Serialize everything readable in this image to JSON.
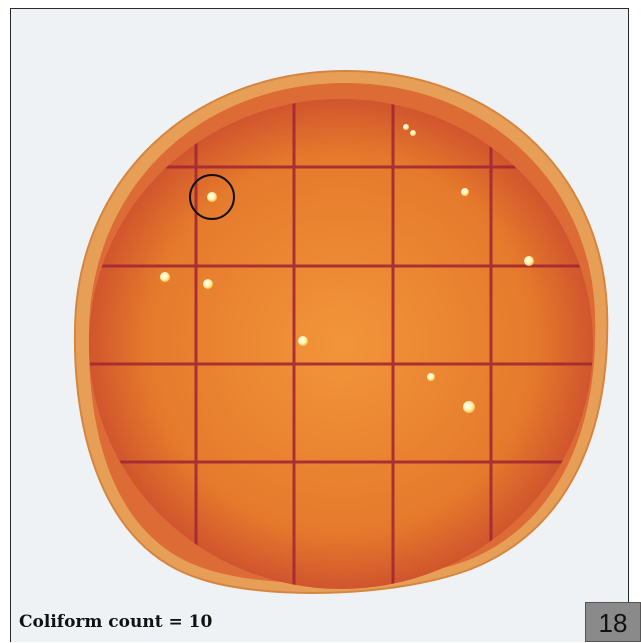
{
  "caption": {
    "label": "Coliform count = 10"
  },
  "badge": {
    "number": "18"
  },
  "colors": {
    "background": "#eef2f4",
    "dish_rim": "#e7a055",
    "medium": "#e4792a",
    "grid_lines": "#9e2430",
    "colony": "#fff6cc"
  },
  "colony_count": 10
}
